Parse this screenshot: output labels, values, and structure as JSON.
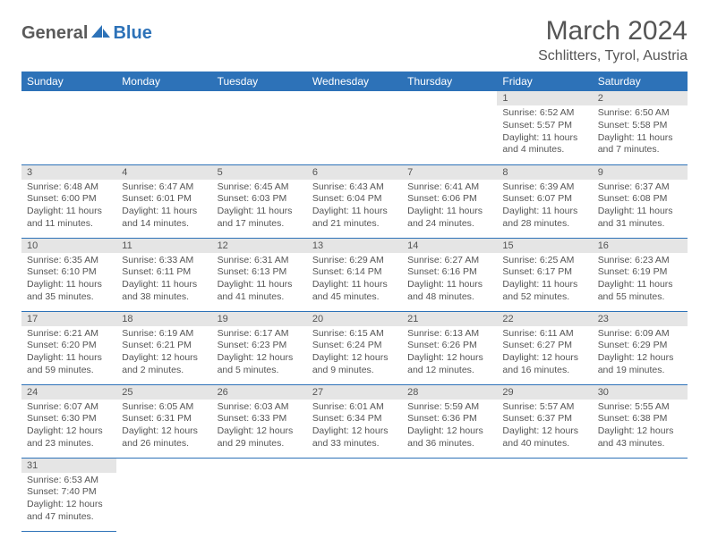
{
  "logo": {
    "general": "General",
    "blue": "Blue"
  },
  "title": "March 2024",
  "location": "Schlitters, Tyrol, Austria",
  "colors": {
    "header_bg": "#2d72b8",
    "header_text": "#ffffff",
    "daynum_bg": "#e5e5e5",
    "row_border": "#2d72b8",
    "text": "#555555",
    "page_bg": "#ffffff"
  },
  "weekdays": [
    "Sunday",
    "Monday",
    "Tuesday",
    "Wednesday",
    "Thursday",
    "Friday",
    "Saturday"
  ],
  "weeks": [
    [
      null,
      null,
      null,
      null,
      null,
      {
        "d": "1",
        "sr": "Sunrise: 6:52 AM",
        "ss": "Sunset: 5:57 PM",
        "dl": "Daylight: 11 hours and 4 minutes."
      },
      {
        "d": "2",
        "sr": "Sunrise: 6:50 AM",
        "ss": "Sunset: 5:58 PM",
        "dl": "Daylight: 11 hours and 7 minutes."
      }
    ],
    [
      {
        "d": "3",
        "sr": "Sunrise: 6:48 AM",
        "ss": "Sunset: 6:00 PM",
        "dl": "Daylight: 11 hours and 11 minutes."
      },
      {
        "d": "4",
        "sr": "Sunrise: 6:47 AM",
        "ss": "Sunset: 6:01 PM",
        "dl": "Daylight: 11 hours and 14 minutes."
      },
      {
        "d": "5",
        "sr": "Sunrise: 6:45 AM",
        "ss": "Sunset: 6:03 PM",
        "dl": "Daylight: 11 hours and 17 minutes."
      },
      {
        "d": "6",
        "sr": "Sunrise: 6:43 AM",
        "ss": "Sunset: 6:04 PM",
        "dl": "Daylight: 11 hours and 21 minutes."
      },
      {
        "d": "7",
        "sr": "Sunrise: 6:41 AM",
        "ss": "Sunset: 6:06 PM",
        "dl": "Daylight: 11 hours and 24 minutes."
      },
      {
        "d": "8",
        "sr": "Sunrise: 6:39 AM",
        "ss": "Sunset: 6:07 PM",
        "dl": "Daylight: 11 hours and 28 minutes."
      },
      {
        "d": "9",
        "sr": "Sunrise: 6:37 AM",
        "ss": "Sunset: 6:08 PM",
        "dl": "Daylight: 11 hours and 31 minutes."
      }
    ],
    [
      {
        "d": "10",
        "sr": "Sunrise: 6:35 AM",
        "ss": "Sunset: 6:10 PM",
        "dl": "Daylight: 11 hours and 35 minutes."
      },
      {
        "d": "11",
        "sr": "Sunrise: 6:33 AM",
        "ss": "Sunset: 6:11 PM",
        "dl": "Daylight: 11 hours and 38 minutes."
      },
      {
        "d": "12",
        "sr": "Sunrise: 6:31 AM",
        "ss": "Sunset: 6:13 PM",
        "dl": "Daylight: 11 hours and 41 minutes."
      },
      {
        "d": "13",
        "sr": "Sunrise: 6:29 AM",
        "ss": "Sunset: 6:14 PM",
        "dl": "Daylight: 11 hours and 45 minutes."
      },
      {
        "d": "14",
        "sr": "Sunrise: 6:27 AM",
        "ss": "Sunset: 6:16 PM",
        "dl": "Daylight: 11 hours and 48 minutes."
      },
      {
        "d": "15",
        "sr": "Sunrise: 6:25 AM",
        "ss": "Sunset: 6:17 PM",
        "dl": "Daylight: 11 hours and 52 minutes."
      },
      {
        "d": "16",
        "sr": "Sunrise: 6:23 AM",
        "ss": "Sunset: 6:19 PM",
        "dl": "Daylight: 11 hours and 55 minutes."
      }
    ],
    [
      {
        "d": "17",
        "sr": "Sunrise: 6:21 AM",
        "ss": "Sunset: 6:20 PM",
        "dl": "Daylight: 11 hours and 59 minutes."
      },
      {
        "d": "18",
        "sr": "Sunrise: 6:19 AM",
        "ss": "Sunset: 6:21 PM",
        "dl": "Daylight: 12 hours and 2 minutes."
      },
      {
        "d": "19",
        "sr": "Sunrise: 6:17 AM",
        "ss": "Sunset: 6:23 PM",
        "dl": "Daylight: 12 hours and 5 minutes."
      },
      {
        "d": "20",
        "sr": "Sunrise: 6:15 AM",
        "ss": "Sunset: 6:24 PM",
        "dl": "Daylight: 12 hours and 9 minutes."
      },
      {
        "d": "21",
        "sr": "Sunrise: 6:13 AM",
        "ss": "Sunset: 6:26 PM",
        "dl": "Daylight: 12 hours and 12 minutes."
      },
      {
        "d": "22",
        "sr": "Sunrise: 6:11 AM",
        "ss": "Sunset: 6:27 PM",
        "dl": "Daylight: 12 hours and 16 minutes."
      },
      {
        "d": "23",
        "sr": "Sunrise: 6:09 AM",
        "ss": "Sunset: 6:29 PM",
        "dl": "Daylight: 12 hours and 19 minutes."
      }
    ],
    [
      {
        "d": "24",
        "sr": "Sunrise: 6:07 AM",
        "ss": "Sunset: 6:30 PM",
        "dl": "Daylight: 12 hours and 23 minutes."
      },
      {
        "d": "25",
        "sr": "Sunrise: 6:05 AM",
        "ss": "Sunset: 6:31 PM",
        "dl": "Daylight: 12 hours and 26 minutes."
      },
      {
        "d": "26",
        "sr": "Sunrise: 6:03 AM",
        "ss": "Sunset: 6:33 PM",
        "dl": "Daylight: 12 hours and 29 minutes."
      },
      {
        "d": "27",
        "sr": "Sunrise: 6:01 AM",
        "ss": "Sunset: 6:34 PM",
        "dl": "Daylight: 12 hours and 33 minutes."
      },
      {
        "d": "28",
        "sr": "Sunrise: 5:59 AM",
        "ss": "Sunset: 6:36 PM",
        "dl": "Daylight: 12 hours and 36 minutes."
      },
      {
        "d": "29",
        "sr": "Sunrise: 5:57 AM",
        "ss": "Sunset: 6:37 PM",
        "dl": "Daylight: 12 hours and 40 minutes."
      },
      {
        "d": "30",
        "sr": "Sunrise: 5:55 AM",
        "ss": "Sunset: 6:38 PM",
        "dl": "Daylight: 12 hours and 43 minutes."
      }
    ],
    [
      {
        "d": "31",
        "sr": "Sunrise: 6:53 AM",
        "ss": "Sunset: 7:40 PM",
        "dl": "Daylight: 12 hours and 47 minutes."
      },
      null,
      null,
      null,
      null,
      null,
      null
    ]
  ]
}
